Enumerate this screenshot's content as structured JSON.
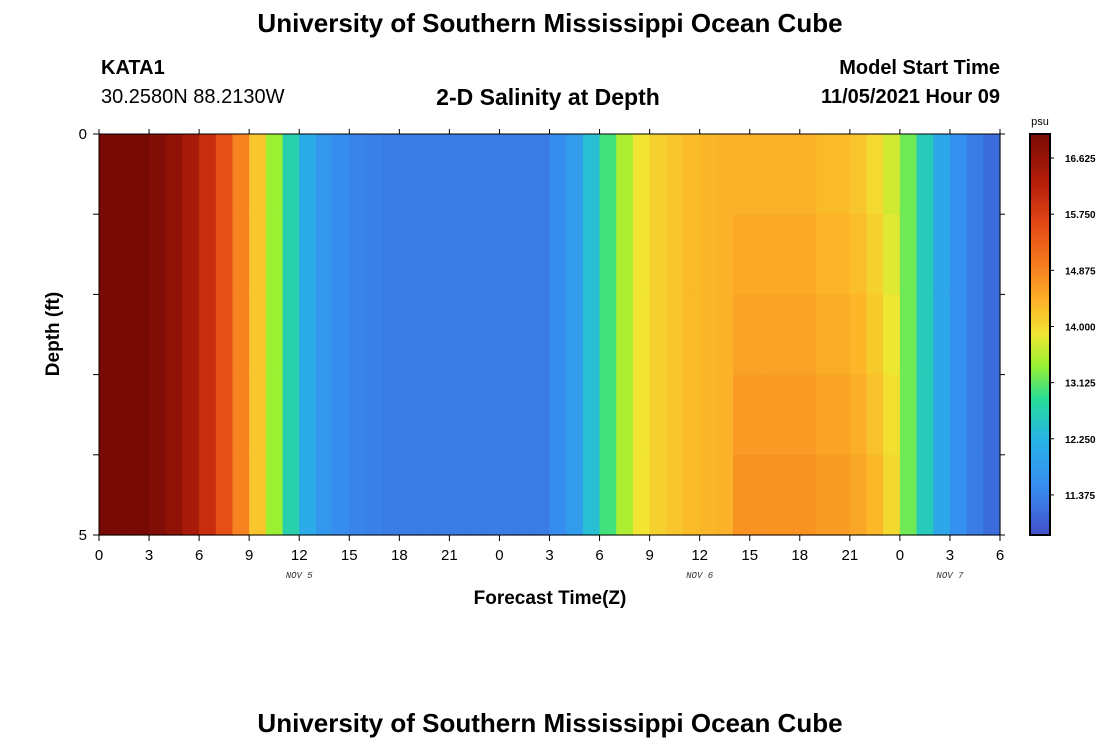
{
  "header": {
    "title": "University of Southern Mississippi Ocean Cube",
    "station_id": "KATA1",
    "station_coords": "30.2580N  88.2130W",
    "chart_title": "2-D Salinity at Depth",
    "model_start_label": "Model Start Time",
    "model_start_value": "11/05/2021 Hour 09"
  },
  "footer": {
    "title": "University of Southern Mississippi Ocean Cube"
  },
  "chart_data": {
    "type": "heatmap",
    "title": "2-D Salinity at Depth",
    "xlabel": "Forecast Time(Z)",
    "ylabel": "Depth (ft)",
    "x_hours_range": [
      0,
      54
    ],
    "y_range": [
      0,
      5
    ],
    "y_ticks": [
      "0",
      "5"
    ],
    "x_tick_labels": [
      "0",
      "3",
      "6",
      "9",
      "12",
      "15",
      "18",
      "21",
      "0",
      "3",
      "6",
      "9",
      "12",
      "15",
      "18",
      "21",
      "0",
      "3",
      "6"
    ],
    "date_labels": [
      {
        "text": "NOV 5",
        "hour": 12
      },
      {
        "text": "NOV 6",
        "hour": 36
      },
      {
        "text": "NOV 7",
        "hour": 51
      }
    ],
    "depth_levels": [
      0,
      1,
      2,
      3,
      4
    ],
    "salinity_psu_by_hour": [
      17.0,
      17.0,
      17.0,
      16.9,
      16.7,
      16.4,
      16.0,
      15.5,
      14.9,
      14.2,
      13.4,
      12.7,
      12.1,
      11.7,
      11.5,
      11.4,
      11.35,
      11.3,
      11.3,
      11.3,
      11.3,
      11.3,
      11.3,
      11.3,
      11.3,
      11.3,
      11.3,
      11.5,
      11.8,
      12.4,
      13.0,
      13.5,
      13.9,
      14.1,
      14.2,
      14.3,
      14.35,
      14.4,
      14.4,
      14.4,
      14.4,
      14.4,
      14.4,
      14.3,
      14.3,
      14.2,
      14.0,
      13.7,
      13.2,
      12.6,
      12.0,
      11.6,
      11.3,
      11.1
    ],
    "colorbar": {
      "unit": "psu",
      "ticks": [
        16.625,
        15.75,
        14.875,
        14.0,
        13.125,
        12.25,
        11.375
      ],
      "tick_labels": [
        "16.625",
        "15.750",
        "14.875",
        "14.000",
        "13.125",
        "12.250",
        "11.375"
      ]
    }
  }
}
